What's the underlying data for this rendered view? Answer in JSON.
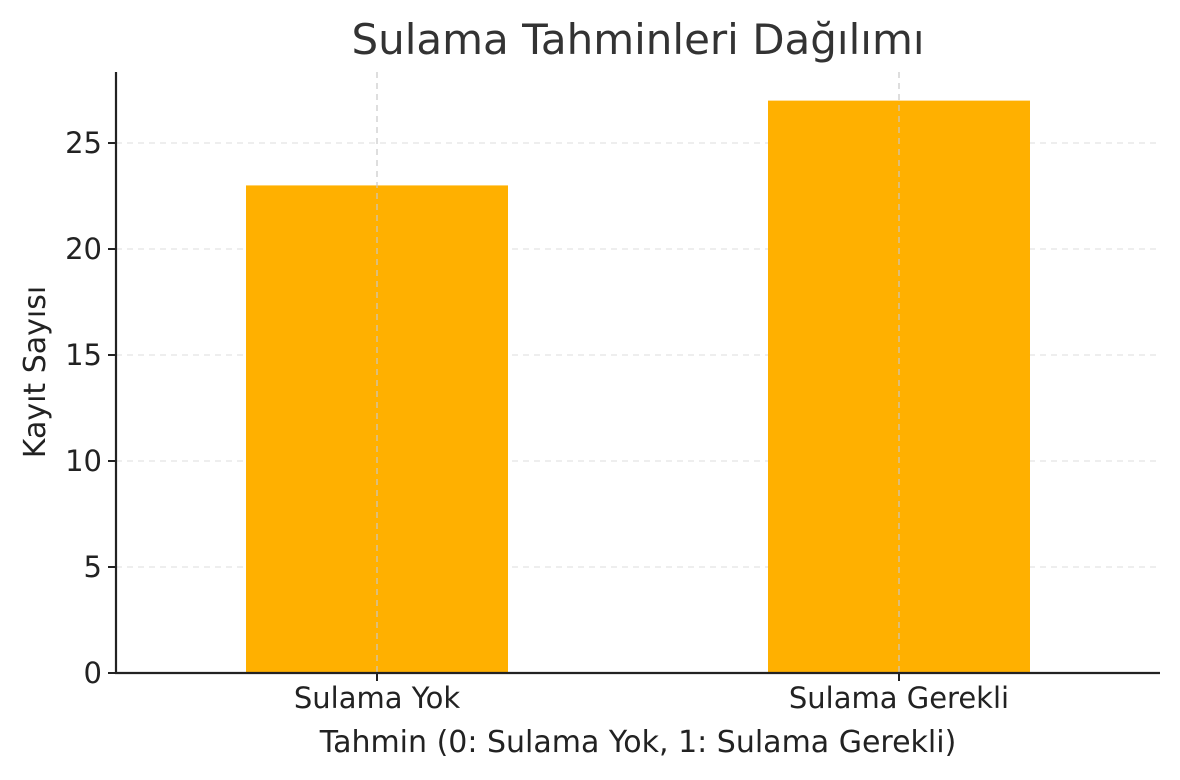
{
  "chart_data": {
    "type": "bar",
    "title": "Sulama Tahminleri Dağılımı",
    "xlabel": "Tahmin (0: Sulama Yok, 1: Sulama Gerekli)",
    "ylabel": "Kayıt Sayısı",
    "categories": [
      "Sulama Yok",
      "Sulama Gerekli"
    ],
    "values": [
      23,
      27
    ],
    "ylim": [
      0,
      28.35
    ],
    "yticks": [
      0,
      5,
      10,
      15,
      20,
      25
    ],
    "grid": true,
    "bar_color": "#FFB000"
  }
}
